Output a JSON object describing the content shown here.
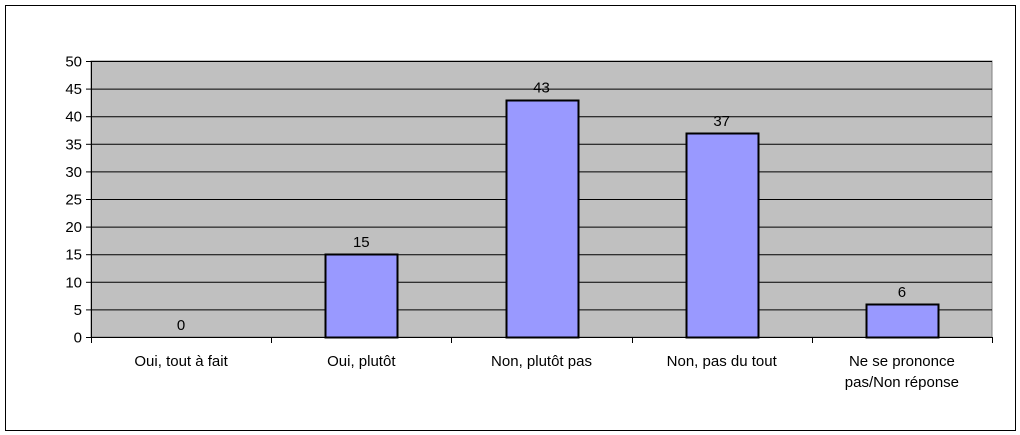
{
  "chart_data": {
    "type": "bar",
    "categories": [
      [
        "Oui, tout à fait"
      ],
      [
        "Oui, plutôt"
      ],
      [
        "Non, plutôt pas"
      ],
      [
        "Non, pas du tout"
      ],
      [
        "Ne se prononce",
        "pas/Non réponse"
      ]
    ],
    "values": [
      0,
      15,
      43,
      37,
      6
    ],
    "yticks": [
      0,
      5,
      10,
      15,
      20,
      25,
      30,
      35,
      40,
      45,
      50
    ],
    "ylim": [
      0,
      50
    ],
    "grid": true,
    "legend": "none",
    "colors": {
      "bar_fill": "#9999ff",
      "bar_stroke": "#000000",
      "plot_background": "#c0c0c0",
      "gridline": "#000000"
    }
  }
}
